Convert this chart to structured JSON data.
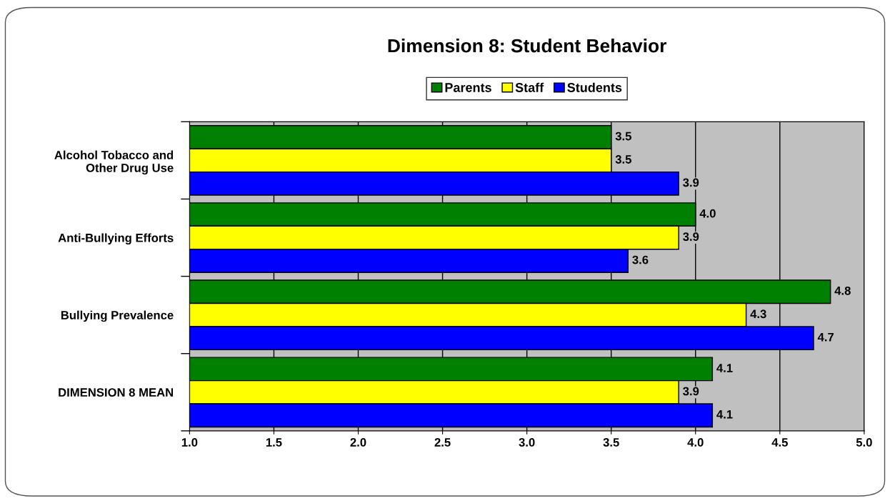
{
  "chart_data": {
    "type": "bar",
    "orientation": "horizontal",
    "title": "Dimension 8: Student Behavior",
    "categories": [
      "Alcohol Tobacco and\nOther Drug Use",
      "Anti-Bullying Efforts",
      "Bullying Prevalence",
      "DIMENSION 8 MEAN"
    ],
    "series": [
      {
        "name": "Parents",
        "color": "#008000",
        "values": [
          3.5,
          4.0,
          4.8,
          4.1
        ],
        "value_labels": [
          "3.5",
          "4.0",
          "4.8",
          "4.1"
        ]
      },
      {
        "name": "Staff",
        "color": "#ffff00",
        "values": [
          3.5,
          3.9,
          4.3,
          3.9
        ],
        "value_labels": [
          "3.5",
          "3.9",
          "4.3",
          "3.9"
        ]
      },
      {
        "name": "Students",
        "color": "#0000ff",
        "values": [
          3.9,
          3.6,
          4.7,
          4.1
        ],
        "value_labels": [
          "3.9",
          "3.6",
          "4.7",
          "4.1"
        ]
      }
    ],
    "xlim": [
      1.0,
      5.0
    ],
    "xticks": [
      {
        "value": 1.0,
        "label": "1.0"
      },
      {
        "value": 1.5,
        "label": "1.5"
      },
      {
        "value": 2.0,
        "label": "2.0"
      },
      {
        "value": 2.5,
        "label": "2.5"
      },
      {
        "value": 3.0,
        "label": "3.0"
      },
      {
        "value": 3.5,
        "label": "3.5"
      },
      {
        "value": 4.0,
        "label": "4.0"
      },
      {
        "value": 4.5,
        "label": "4.5"
      },
      {
        "value": 5.0,
        "label": "5.0"
      }
    ],
    "grid": "x",
    "legend": "top"
  }
}
